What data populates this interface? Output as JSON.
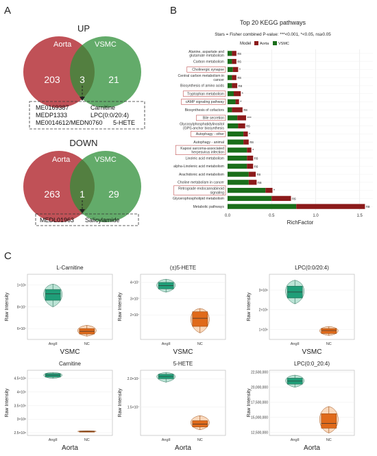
{
  "panel_a": {
    "letter": "A",
    "up": {
      "heading": "UP",
      "left_label": "Aorta",
      "right_label": "VSMC",
      "left_only": "203",
      "overlap": "3",
      "right_only": "21",
      "list": [
        {
          "id": "ME0169387",
          "name": "Carnitine"
        },
        {
          "id": "MEDP1333",
          "name": "LPC(0:0/20:4)"
        },
        {
          "id": "ME0014612/MEDN0760",
          "name": "5-HETE"
        }
      ]
    },
    "down": {
      "heading": "DOWN",
      "left_label": "Aorta",
      "right_label": "VSMC",
      "left_only": "263",
      "overlap": "1",
      "right_only": "29",
      "list": [
        {
          "id": "MEDL01963",
          "name": "Salicylamide"
        }
      ]
    },
    "colors": {
      "aorta": "#b5333a",
      "vsmc": "#2f8f38"
    }
  },
  "panel_b": {
    "letter": "B",
    "title": "Top 20 KEGG pathways",
    "subtitle": "Stars = Fisher combined P-value: ***<0.001, *<0.05, ns≥0.05",
    "legend_title": "Model",
    "legend_items": [
      {
        "name": "Aorta",
        "color": "#8b1a1a"
      },
      {
        "name": "VSMC",
        "color": "#1a6e1a"
      }
    ],
    "xlabel": "RichFactor",
    "xticks": [
      "0.0",
      "0.5",
      "1.0",
      "1.5"
    ]
  },
  "chart_data": [
    {
      "type": "bar",
      "stacked": true,
      "orientation": "horizontal",
      "title": "Top 20 KEGG pathways",
      "xlabel": "RichFactor",
      "xlim": [
        0,
        1.65
      ],
      "categories": [
        "Alanine, aspartate and glutamate metabolism",
        "Carbon metabolism",
        "Cholinergic synapse",
        "Central carbon metabolism in cancer",
        "Biosynthesis of amino acids",
        "Tryptophan metabolism",
        "cAMP signaling pathway",
        "Biosynthesis of cofactors",
        "Bile secretion",
        "Glycosylphosphatidylinositol (GPI)-anchor biosynthesis",
        "Autophagy - other",
        "Autophagy - animal",
        "Kaposi sarcoma-associated herpesvirus infection",
        "Linoleic acid metabolism",
        "alpha-Linolenic acid metabolism",
        "Arachidonic acid metabolism",
        "Choline metabolism in cancer",
        "Retrograde endocannabinoid signaling",
        "Glycerophospholipid metabolism",
        "Metabolic pathways"
      ],
      "boxed": [
        false,
        false,
        true,
        false,
        false,
        true,
        true,
        false,
        true,
        false,
        true,
        false,
        true,
        false,
        false,
        false,
        false,
        true,
        false,
        false
      ],
      "significance": [
        "ns",
        "ns",
        "*",
        "ns",
        "ns",
        "*",
        "*",
        "ns",
        "***",
        "ns",
        "*",
        "ns",
        "*",
        "ns",
        "ns",
        "ns",
        "ns",
        "*",
        "ns",
        "ns"
      ],
      "series": [
        {
          "name": "VSMC",
          "values": [
            0.05,
            0.05,
            0.06,
            0.05,
            0.05,
            0.07,
            0.09,
            0.05,
            0.11,
            0.12,
            0.18,
            0.18,
            0.22,
            0.22,
            0.22,
            0.24,
            0.24,
            0.43,
            0.5,
            0.78
          ]
        },
        {
          "name": "Aorta",
          "values": [
            0.05,
            0.05,
            0.06,
            0.05,
            0.06,
            0.08,
            0.04,
            0.12,
            0.1,
            0.08,
            0.05,
            0.06,
            0.05,
            0.07,
            0.07,
            0.08,
            0.09,
            0.08,
            0.22,
            0.78
          ]
        }
      ]
    },
    {
      "type": "box",
      "title": "L-Carnitine",
      "ylabel": "Raw Intensity",
      "xlabel": "VSMC",
      "categories": [
        "AngII",
        "NC"
      ],
      "yticks": [
        "6×10⁷",
        "8×10⁷",
        "1×10⁸"
      ],
      "ytick_values": [
        60000000,
        80000000,
        100000000
      ],
      "ylim": [
        50000000,
        110000000
      ],
      "boxes": [
        {
          "min": 80000000,
          "q1": 86000000,
          "median": 92000000,
          "q3": 96000000,
          "max": 101000000
        },
        {
          "min": 53000000,
          "q1": 55000000,
          "median": 57500000,
          "q3": 60000000,
          "max": 63000000
        }
      ]
    },
    {
      "type": "box",
      "title": "(±)5-HETE",
      "ylabel": "Raw Intensity",
      "xlabel": "VSMC",
      "categories": [
        "AngII",
        "NC"
      ],
      "yticks": [
        "2×10⁷",
        "3×10⁷",
        "4×10⁷"
      ],
      "ytick_values": [
        20000000,
        30000000,
        40000000
      ],
      "ylim": [
        5000000,
        45000000
      ],
      "boxes": [
        {
          "min": 34000000,
          "q1": 36000000,
          "median": 38000000,
          "q3": 40000000,
          "max": 42000000
        },
        {
          "min": 9000000,
          "q1": 13000000,
          "median": 18000000,
          "q3": 22000000,
          "max": 24000000
        }
      ]
    },
    {
      "type": "box",
      "title": "LPC(0:0/20:4)",
      "ylabel": "Raw Intensity",
      "xlabel": "VSMC",
      "categories": [
        "AngII",
        "NC"
      ],
      "yticks": [
        "1×10⁶",
        "2×10⁶",
        "3×10⁶"
      ],
      "ytick_values": [
        1000000,
        2000000,
        3000000
      ],
      "ylim": [
        500000,
        3800000
      ],
      "boxes": [
        {
          "min": 2300000,
          "q1": 2600000,
          "median": 2900000,
          "q3": 3200000,
          "max": 3500000
        },
        {
          "min": 700000,
          "q1": 800000,
          "median": 950000,
          "q3": 1050000,
          "max": 1150000
        }
      ]
    },
    {
      "type": "box",
      "title": "Carnitine",
      "ylabel": "Raw Intensity",
      "xlabel": "Aorta",
      "categories": [
        "AngII",
        "NC"
      ],
      "yticks": [
        "2.5×10⁸",
        "3×10⁸",
        "3.5×10⁸",
        "4×10⁸",
        "4.5×10⁸"
      ],
      "ytick_values": [
        250000000,
        300000000,
        350000000,
        400000000,
        450000000
      ],
      "ylim": [
        240000000,
        480000000
      ],
      "boxes": [
        {
          "min": 450000000,
          "q1": 455000000,
          "median": 462000000,
          "q3": 468000000,
          "max": 472000000
        },
        {
          "min": 252000000,
          "q1": 254000000,
          "median": 255000000,
          "q3": 256000000,
          "max": 257000000
        }
      ]
    },
    {
      "type": "box",
      "title": "5-HETE",
      "ylabel": "Raw Intensity",
      "xlabel": "Aorta",
      "categories": [
        "AngII",
        "NC"
      ],
      "yticks": [
        "1.5×10⁷",
        "2.0×10⁷"
      ],
      "ytick_values": [
        15000000,
        20000000
      ],
      "ylim": [
        10000000,
        21500000
      ],
      "boxes": [
        {
          "min": 19400000,
          "q1": 20000000,
          "median": 20400000,
          "q3": 20800000,
          "max": 21100000
        },
        {
          "min": 11000000,
          "q1": 11500000,
          "median": 12000000,
          "q3": 12600000,
          "max": 13500000
        }
      ]
    },
    {
      "type": "box",
      "title": "LPC(0:0_20:4)",
      "ylabel": "Raw Intensity",
      "xlabel": "Aorta",
      "categories": [
        "AngII",
        "NC"
      ],
      "yticks": [
        "12,500,000",
        "15,000,000",
        "17,500,000",
        "20,000,000",
        "22,500,000"
      ],
      "ytick_values": [
        12500000,
        15000000,
        17500000,
        20000000,
        22500000
      ],
      "ylim": [
        12000000,
        22800000
      ],
      "boxes": [
        {
          "min": 20000000,
          "q1": 20500000,
          "median": 21000000,
          "q3": 21500000,
          "max": 22000000
        },
        {
          "min": 12400000,
          "q1": 13200000,
          "median": 14000000,
          "q3": 15600000,
          "max": 16800000
        }
      ]
    }
  ],
  "panel_c": {
    "letter": "C"
  }
}
